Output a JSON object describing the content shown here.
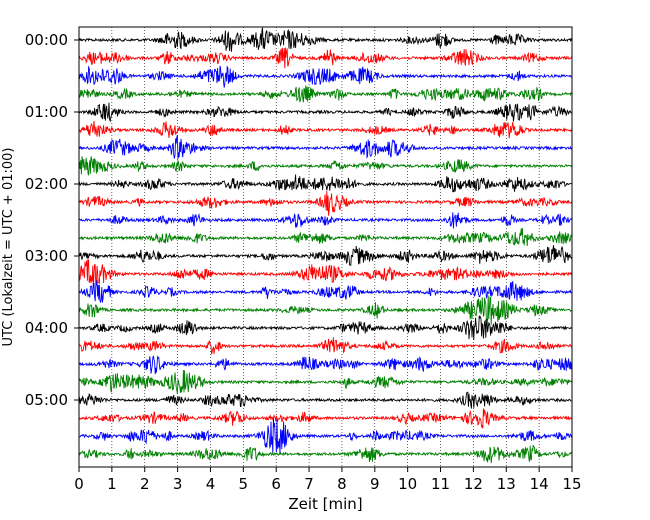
{
  "chart_data": {
    "type": "line",
    "title": "",
    "xlabel": "Zeit  [min]",
    "ylabel": "UTC (Lokalzeit = UTC + 01:00)",
    "xlim": [
      0,
      15
    ],
    "x_ticks": [
      0,
      1,
      2,
      3,
      4,
      5,
      6,
      7,
      8,
      9,
      10,
      11,
      12,
      13,
      14,
      15
    ],
    "y_tick_labels": [
      "00:00",
      "01:00",
      "02:00",
      "03:00",
      "04:00",
      "05:00"
    ],
    "grid": "vertical dotted",
    "trace_interval_minutes": 15,
    "trace_colors": [
      "#000000",
      "#ff0000",
      "#0000ff",
      "#008000"
    ],
    "traces": [
      {
        "start": "00:00",
        "color": "#000000"
      },
      {
        "start": "00:15",
        "color": "#ff0000"
      },
      {
        "start": "00:30",
        "color": "#0000ff"
      },
      {
        "start": "00:45",
        "color": "#008000"
      },
      {
        "start": "01:00",
        "color": "#000000"
      },
      {
        "start": "01:15",
        "color": "#ff0000"
      },
      {
        "start": "01:30",
        "color": "#0000ff"
      },
      {
        "start": "01:45",
        "color": "#008000"
      },
      {
        "start": "02:00",
        "color": "#000000"
      },
      {
        "start": "02:15",
        "color": "#ff0000"
      },
      {
        "start": "02:30",
        "color": "#0000ff"
      },
      {
        "start": "02:45",
        "color": "#008000"
      },
      {
        "start": "03:00",
        "color": "#000000"
      },
      {
        "start": "03:15",
        "color": "#ff0000"
      },
      {
        "start": "03:30",
        "color": "#0000ff"
      },
      {
        "start": "03:45",
        "color": "#008000"
      },
      {
        "start": "04:00",
        "color": "#000000"
      },
      {
        "start": "04:15",
        "color": "#ff0000"
      },
      {
        "start": "04:30",
        "color": "#0000ff"
      },
      {
        "start": "04:45",
        "color": "#008000"
      },
      {
        "start": "05:00",
        "color": "#000000"
      },
      {
        "start": "05:15",
        "color": "#ff0000"
      },
      {
        "start": "05:30",
        "color": "#0000ff"
      },
      {
        "start": "05:45",
        "color": "#008000"
      }
    ]
  }
}
